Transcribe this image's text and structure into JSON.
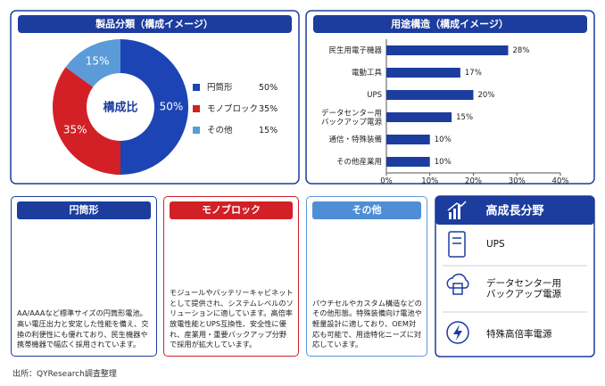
{
  "chart_data": [
    {
      "type": "pie",
      "title": "製品分類（構成イメージ）",
      "center_label": "構成比",
      "categories": [
        "円筒形",
        "モノブロック",
        "その他"
      ],
      "values": [
        50,
        35,
        15
      ],
      "value_labels": [
        "50%",
        "35%",
        "15%"
      ],
      "colors": [
        "#1c44b4",
        "#d22026",
        "#5b9bd8"
      ],
      "legend": "right"
    },
    {
      "type": "bar",
      "orientation": "horizontal",
      "title": "用途構造（構成イメージ）",
      "categories": [
        "民生用電子機器",
        "電動工具",
        "UPS",
        "データセンター用\nバックアップ電源",
        "通信・特殊装備",
        "その他産業用"
      ],
      "values": [
        28,
        17,
        20,
        15,
        10,
        10
      ],
      "value_labels": [
        "28%",
        "17%",
        "20%",
        "15%",
        "10%",
        "10%"
      ],
      "color": "#1c3d9e",
      "xlim": [
        0,
        40
      ],
      "xticks": [
        {
          "value": 0,
          "label": "0%"
        },
        {
          "value": 10,
          "label": "10%"
        },
        {
          "value": 20,
          "label": "20%"
        },
        {
          "value": 30,
          "label": "30%"
        },
        {
          "value": 40,
          "label": "40%"
        }
      ],
      "grid": false
    }
  ],
  "panels": [
    {
      "title": "円筒形",
      "text": "AA/AAAなど標準サイズの円筒形電池。高い電圧出力と安定した性能を備え、交換の利便性にも優れており、民生機器や携帯機器で幅広く採用されています。"
    },
    {
      "title": "モノブロック",
      "text": "モジュールやバッテリーキャビネットとして提供され、システムレベルのソリューションに適しています。高倍率放電性能とUPS互換性、安全性に優れ、産業用・重要バックアップ分野で採用が拡大しています。"
    },
    {
      "title": "その他",
      "text": "パウチセルやカスタム構造などのその他形態。特殊装備向け電池や軽量設計に適しており、OEM対応も可能で、用途特化ニーズに対応しています。"
    }
  ],
  "growth": {
    "title": "高成長分野",
    "items": [
      "UPS",
      "データセンター用\nバックアップ電源",
      "特殊高倍率電源"
    ]
  },
  "source": "出所：QYResearch調査整理"
}
